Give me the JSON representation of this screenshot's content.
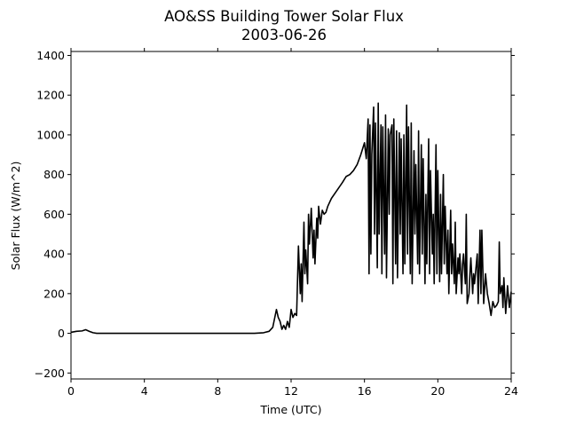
{
  "chart_data": {
    "type": "line",
    "title": "AO&SS Building Tower Solar Flux",
    "subtitle": "2003-06-26",
    "xlabel": "Time (UTC)",
    "ylabel": "Solar Flux (W/m^2)",
    "xlim": [
      0,
      24
    ],
    "ylim": [
      -230,
      1420
    ],
    "x_ticks": [
      0,
      4,
      8,
      12,
      16,
      20,
      24
    ],
    "x_tick_labels": [
      "0",
      "4",
      "8",
      "12",
      "16",
      "20",
      "24"
    ],
    "y_ticks": [
      -200,
      0,
      200,
      400,
      600,
      800,
      1000,
      1200,
      1400
    ],
    "y_tick_labels": [
      "−200",
      "0",
      "200",
      "400",
      "600",
      "800",
      "1000",
      "1200",
      "1400"
    ],
    "grid": false,
    "line_color": "#000000",
    "series": [
      {
        "x": [
          0,
          0.3,
          0.6,
          0.8,
          1.0,
          1.2,
          1.4,
          1.6,
          2.0,
          4.0,
          6.0,
          8.0,
          10.0,
          10.5,
          10.8,
          11.0,
          11.2,
          11.3,
          11.4,
          11.5,
          11.6,
          11.7,
          11.8,
          11.9,
          12.0,
          12.1,
          12.2,
          12.3,
          12.4,
          12.5,
          12.55,
          12.6,
          12.7,
          12.75,
          12.8,
          12.9,
          12.95,
          13.0,
          13.1,
          13.2,
          13.25,
          13.3,
          13.4,
          13.45,
          13.5,
          13.6,
          13.7,
          13.8,
          13.9,
          14.0,
          14.1,
          14.2,
          14.5,
          14.8,
          15.0,
          15.2,
          15.3,
          15.4,
          15.6,
          15.8,
          16.0,
          16.1,
          16.2,
          16.25,
          16.3,
          16.35,
          16.4,
          16.5,
          16.55,
          16.6,
          16.7,
          16.75,
          16.8,
          16.9,
          16.95,
          17.0,
          17.1,
          17.15,
          17.2,
          17.3,
          17.35,
          17.4,
          17.5,
          17.55,
          17.6,
          17.7,
          17.75,
          17.8,
          17.9,
          17.95,
          18.0,
          18.1,
          18.15,
          18.2,
          18.3,
          18.35,
          18.4,
          18.5,
          18.55,
          18.6,
          18.7,
          18.75,
          18.8,
          18.9,
          18.95,
          19.0,
          19.1,
          19.15,
          19.2,
          19.3,
          19.35,
          19.4,
          19.5,
          19.55,
          19.6,
          19.7,
          19.75,
          19.8,
          19.9,
          19.95,
          20.0,
          20.1,
          20.15,
          20.2,
          20.3,
          20.35,
          20.4,
          20.5,
          20.55,
          20.6,
          20.7,
          20.75,
          20.8,
          20.9,
          20.95,
          21.0,
          21.1,
          21.15,
          21.2,
          21.3,
          21.35,
          21.4,
          21.5,
          21.55,
          21.6,
          21.7,
          21.75,
          21.8,
          21.9,
          21.95,
          22.0,
          22.1,
          22.15,
          22.2,
          22.3,
          22.35,
          22.4,
          22.5,
          22.6,
          22.7,
          22.8,
          22.9,
          23.0,
          23.1,
          23.2,
          23.3,
          23.35,
          23.4,
          23.5,
          23.55,
          23.6,
          23.7,
          23.8,
          23.9,
          24.0
        ],
        "values": [
          5,
          10,
          12,
          18,
          10,
          3,
          0,
          0,
          0,
          0,
          0,
          0,
          0,
          3,
          10,
          30,
          120,
          80,
          60,
          20,
          40,
          20,
          60,
          30,
          120,
          80,
          100,
          90,
          440,
          200,
          350,
          160,
          560,
          300,
          420,
          250,
          600,
          450,
          630,
          380,
          520,
          350,
          580,
          480,
          640,
          550,
          620,
          600,
          610,
          640,
          660,
          680,
          720,
          760,
          790,
          800,
          810,
          820,
          850,
          900,
          960,
          880,
          1080,
          300,
          1050,
          400,
          900,
          1140,
          500,
          1060,
          330,
          1160,
          500,
          1050,
          300,
          1040,
          400,
          1100,
          280,
          1030,
          600,
          1000,
          1050,
          250,
          1080,
          350,
          1020,
          280,
          1010,
          500,
          980,
          300,
          1000,
          350,
          1150,
          400,
          1040,
          300,
          1060,
          250,
          920,
          500,
          850,
          350,
          1020,
          300,
          950,
          400,
          880,
          250,
          700,
          350,
          980,
          300,
          820,
          400,
          600,
          250,
          950,
          300,
          820,
          260,
          700,
          300,
          800,
          350,
          640,
          300,
          520,
          200,
          620,
          300,
          450,
          250,
          560,
          200,
          380,
          300,
          400,
          200,
          350,
          400,
          250,
          600,
          150,
          200,
          300,
          380,
          200,
          300,
          250,
          350,
          400,
          150,
          520,
          200,
          520,
          150,
          300,
          200,
          150,
          90,
          160,
          130,
          140,
          160,
          460,
          200,
          240,
          130,
          280,
          100,
          240,
          130,
          210
        ]
      }
    ]
  }
}
